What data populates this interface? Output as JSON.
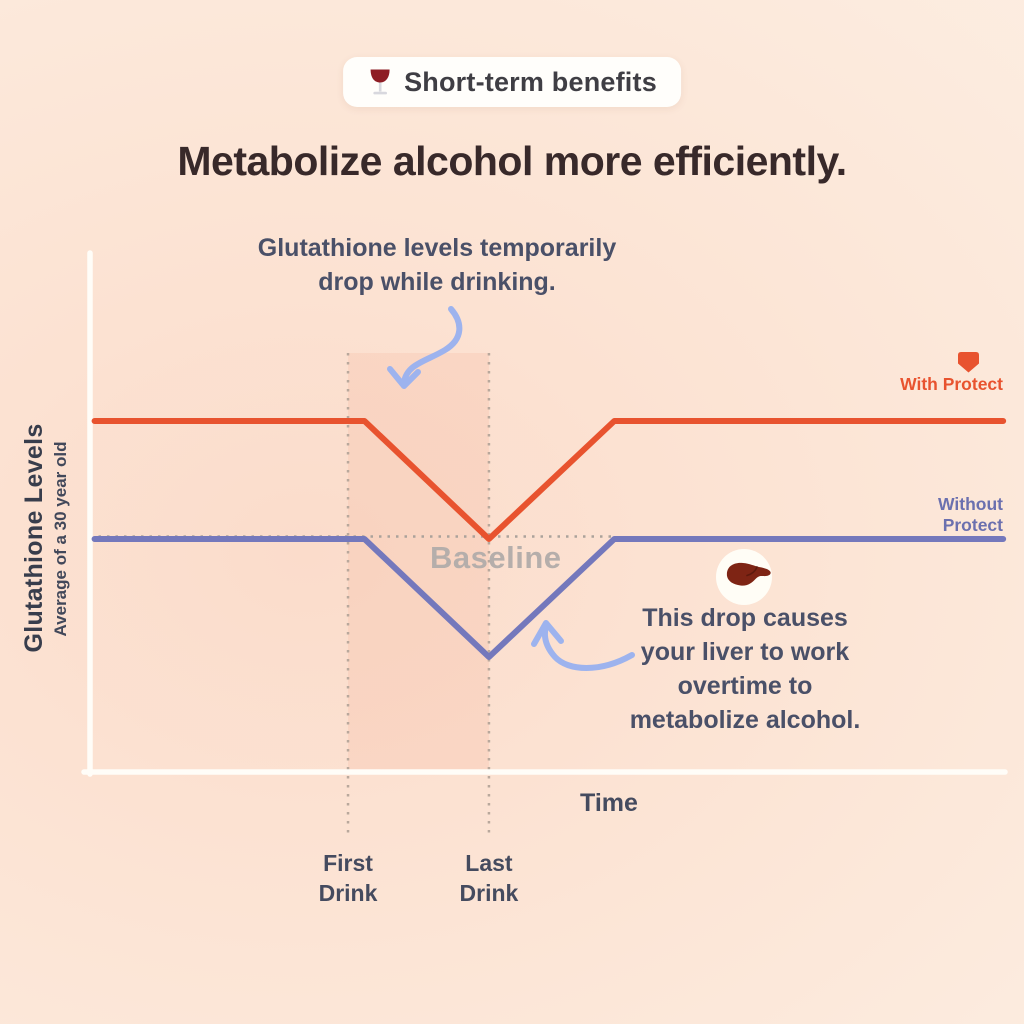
{
  "badge": {
    "icon": "wine-glass",
    "label": "Short-term benefits"
  },
  "title": "Metabolize alcohol more efficiently.",
  "annotation_top": {
    "text": "Glutathione levels temporarily drop while drinking.",
    "lines": [
      "Glutathione levels temporarily",
      "drop while drinking."
    ]
  },
  "annotation_bottom": {
    "icon": "liver",
    "text": "This drop causes your liver to work overtime to metabolize alcohol.",
    "lines": [
      "This drop causes",
      "your liver to work",
      "overtime to",
      "metabolize alcohol."
    ]
  },
  "chart_data": {
    "type": "line",
    "xlabel": "Time",
    "ylabel": "Glutathione Levels",
    "ylabel_sub": "Average of a 30 year old",
    "baseline_label": "Baseline",
    "baseline_y": 0,
    "x_range": [
      0,
      10
    ],
    "y_range": [
      -1.6,
      1.9
    ],
    "grid": false,
    "legend_position": "right of line ends",
    "x_markers": [
      {
        "label": "First Drink",
        "x": 2.82
      },
      {
        "label": "Last Drink",
        "x": 4.36
      }
    ],
    "drinking_window": {
      "from": 2.82,
      "to": 4.36
    },
    "series": [
      {
        "name": "With Protect",
        "icon": "protect-shield",
        "color": "#E8532F",
        "x": [
          0.05,
          3.0,
          4.36,
          5.73,
          9.98
        ],
        "y": [
          1,
          1,
          0,
          1,
          1
        ],
        "meaning": "stays elevated above baseline, dips only to baseline at last drink, recovers"
      },
      {
        "name": "Without Protect",
        "color": "#7478BC",
        "x": [
          0.05,
          3.0,
          4.36,
          5.73,
          9.98
        ],
        "y": [
          0,
          0,
          -1,
          0,
          0
        ],
        "meaning": "starts at baseline, drops below baseline while drinking, recovers after last drink"
      }
    ]
  },
  "colors": {
    "background_top": "#FDF0E5",
    "background_glow": "#FBDCCB",
    "with_protect": "#E8532F",
    "without_protect": "#6B70AF",
    "annotation_text": "#4A5068",
    "title_text": "#38292A",
    "baseline_text": "#B5AEAB",
    "axis": "#FFFDF8",
    "dotted": "#B9A89C",
    "arrow": "#9DB3EE",
    "drinking_region_fill": "rgba(246,168,137,0.18)"
  }
}
